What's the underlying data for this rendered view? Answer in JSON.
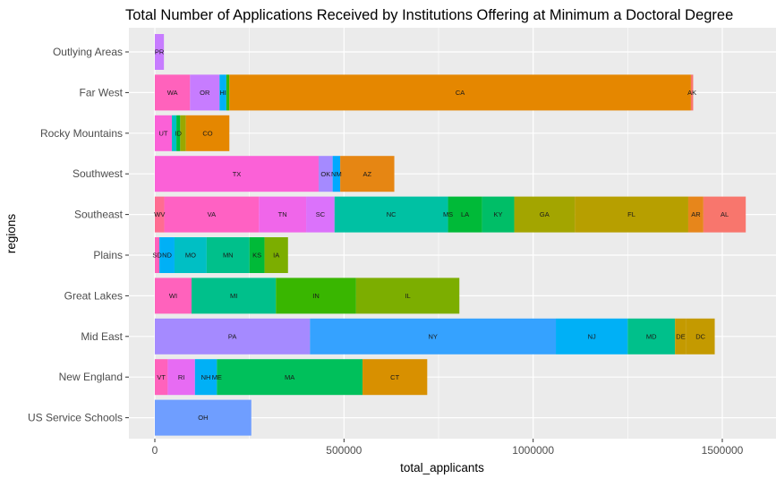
{
  "chart_data": {
    "type": "bar",
    "orientation": "horizontal",
    "stacked": true,
    "title": "Total Number of Applications Received by Institutions Offering at Minimum a Doctoral Degree",
    "xlabel": "total_applicants",
    "ylabel": "regions",
    "xlim": [
      -70000,
      1640000
    ],
    "xticks": [
      0,
      500000,
      1000000,
      1500000
    ],
    "xtick_labels": [
      "0",
      "500000",
      "1000000",
      "1500000"
    ],
    "grid": true,
    "legend": "none",
    "panel_color": "#ebebeb",
    "grid_color": "#ffffff",
    "categories": [
      "Outlying Areas",
      "Far West",
      "Rocky Mountains",
      "Southwest",
      "Southeast",
      "Plains",
      "Great Lakes",
      "Mid East",
      "New England",
      "US Service Schools"
    ],
    "bars": [
      {
        "region": "Outlying Areas",
        "segments": [
          {
            "label": "PR",
            "value": 24000,
            "color": "#c77cff"
          }
        ]
      },
      {
        "region": "Far West",
        "segments": [
          {
            "label": "WA",
            "value": 93000,
            "color": "#ff62bc"
          },
          {
            "label": "OR",
            "value": 78000,
            "color": "#c77cff"
          },
          {
            "label": "HI",
            "value": 18000,
            "color": "#00b0f6"
          },
          {
            "label": "",
            "value": 8000,
            "color": "#39b600"
          },
          {
            "label": "CA",
            "value": 1220000,
            "color": "#e58700"
          },
          {
            "label": "AK",
            "value": 6000,
            "color": "#f8766d"
          }
        ]
      },
      {
        "region": "Rocky Mountains",
        "segments": [
          {
            "label": "UT",
            "value": 45000,
            "color": "#fb61d7"
          },
          {
            "label": "",
            "value": 12000,
            "color": "#00bfc4"
          },
          {
            "label": "ID",
            "value": 10000,
            "color": "#00ba38"
          },
          {
            "label": "",
            "value": 15000,
            "color": "#99a800"
          },
          {
            "label": "CO",
            "value": 115000,
            "color": "#e58700"
          }
        ]
      },
      {
        "region": "Southwest",
        "segments": [
          {
            "label": "TX",
            "value": 433000,
            "color": "#fb61d7"
          },
          {
            "label": "OK",
            "value": 37000,
            "color": "#a58aff"
          },
          {
            "label": "NM",
            "value": 20000,
            "color": "#00a9ff"
          },
          {
            "label": "AZ",
            "value": 143000,
            "color": "#e68613"
          }
        ]
      },
      {
        "region": "Southeast",
        "segments": [
          {
            "label": "WV",
            "value": 25000,
            "color": "#ff6c91"
          },
          {
            "label": "VA",
            "value": 250000,
            "color": "#ff61c3"
          },
          {
            "label": "TN",
            "value": 125000,
            "color": "#f066ea"
          },
          {
            "label": "SC",
            "value": 75000,
            "color": "#db72fb"
          },
          {
            "label": "NC",
            "value": 300000,
            "color": "#00c1a3"
          },
          {
            "label": "MS",
            "value": 0,
            "color": "#00c1a3"
          },
          {
            "label": "LA",
            "value": 90000,
            "color": "#00ba38"
          },
          {
            "label": "KY",
            "value": 85000,
            "color": "#00be67"
          },
          {
            "label": "GA",
            "value": 160000,
            "color": "#a3a500"
          },
          {
            "label": "FL",
            "value": 300000,
            "color": "#b79f00"
          },
          {
            "label": "AR",
            "value": 40000,
            "color": "#e7861b"
          },
          {
            "label": "AL",
            "value": 112000,
            "color": "#f8766d"
          }
        ]
      },
      {
        "region": "Plains",
        "segments": [
          {
            "label": "SD",
            "value": 12000,
            "color": "#ff62bc"
          },
          {
            "label": "ND",
            "value": 40000,
            "color": "#00b0f6"
          },
          {
            "label": "MO",
            "value": 85000,
            "color": "#00bfc4"
          },
          {
            "label": "MN",
            "value": 113000,
            "color": "#00c08b"
          },
          {
            "label": "KS",
            "value": 40000,
            "color": "#00ba38"
          },
          {
            "label": "IA",
            "value": 62000,
            "color": "#7cae00"
          }
        ]
      },
      {
        "region": "Great Lakes",
        "segments": [
          {
            "label": "WI",
            "value": 97000,
            "color": "#ff62bc"
          },
          {
            "label": "MI",
            "value": 223000,
            "color": "#00c08b"
          },
          {
            "label": "IN",
            "value": 212000,
            "color": "#39b600"
          },
          {
            "label": "IL",
            "value": 273000,
            "color": "#7cae00"
          }
        ]
      },
      {
        "region": "Mid East",
        "segments": [
          {
            "label": "PA",
            "value": 410000,
            "color": "#a58aff"
          },
          {
            "label": "NY",
            "value": 650000,
            "color": "#35a2ff"
          },
          {
            "label": "NJ",
            "value": 190000,
            "color": "#00b0f6"
          },
          {
            "label": "MD",
            "value": 125000,
            "color": "#00c08b"
          },
          {
            "label": "DE",
            "value": 30000,
            "color": "#c49a00"
          },
          {
            "label": "DC",
            "value": 75000,
            "color": "#c49a00"
          }
        ]
      },
      {
        "region": "New England",
        "segments": [
          {
            "label": "VT",
            "value": 34000,
            "color": "#ff62bc"
          },
          {
            "label": "RI",
            "value": 72000,
            "color": "#e76bf3"
          },
          {
            "label": "NH",
            "value": 58000,
            "color": "#00b0f6"
          },
          {
            "label": "ME",
            "value": 0,
            "color": "#00b0f6"
          },
          {
            "label": "MA",
            "value": 385000,
            "color": "#00c05b"
          },
          {
            "label": "CT",
            "value": 171000,
            "color": "#d89000"
          }
        ]
      },
      {
        "region": "US Service Schools",
        "segments": [
          {
            "label": "OH",
            "value": 255000,
            "color": "#6f9eff"
          }
        ]
      }
    ]
  }
}
